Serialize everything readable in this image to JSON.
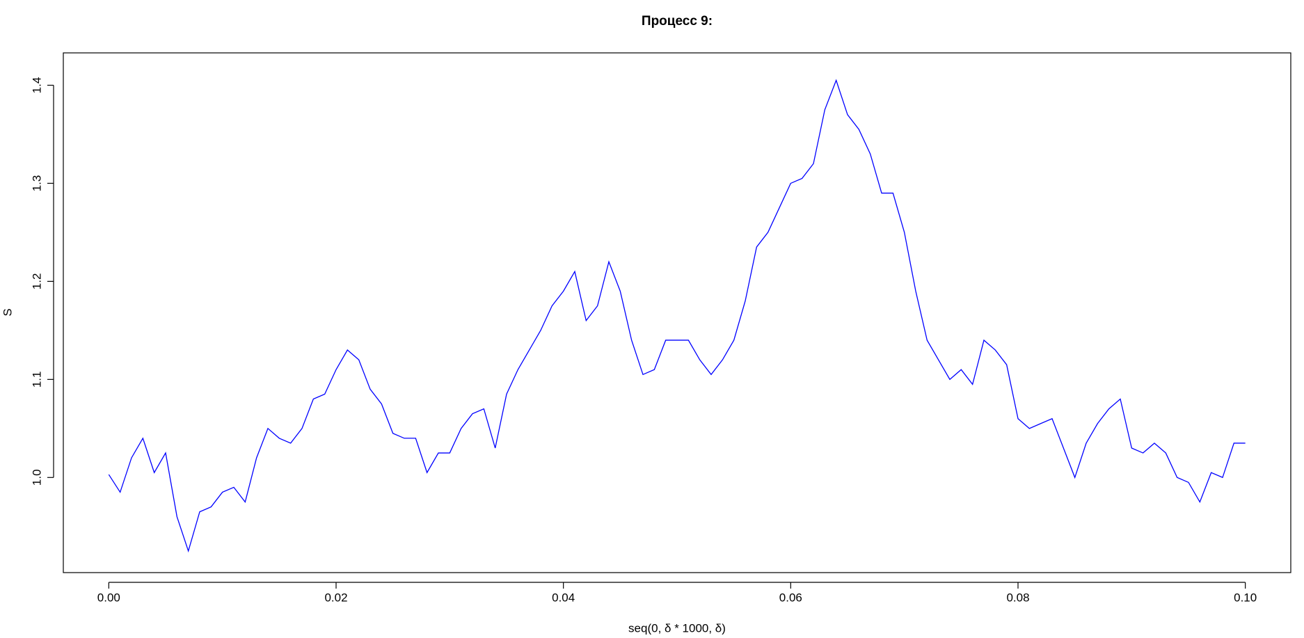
{
  "chart_data": {
    "type": "line",
    "title": "Процесс 9:",
    "xlabel": "seq(0, δ * 1000, δ)",
    "ylabel": "S",
    "x": [
      0,
      0.001,
      0.002,
      0.003,
      0.004,
      0.005,
      0.006,
      0.007,
      0.008,
      0.009,
      0.01,
      0.011,
      0.012,
      0.013,
      0.014,
      0.015,
      0.016,
      0.017,
      0.018,
      0.019,
      0.02,
      0.021,
      0.022,
      0.023,
      0.024,
      0.025,
      0.026,
      0.027,
      0.028,
      0.029,
      0.03,
      0.031,
      0.032,
      0.033,
      0.034,
      0.035,
      0.036,
      0.037,
      0.038,
      0.039,
      0.04,
      0.041,
      0.042,
      0.043,
      0.044,
      0.045,
      0.046,
      0.047,
      0.048,
      0.049,
      0.05,
      0.051,
      0.052,
      0.053,
      0.054,
      0.055,
      0.056,
      0.057,
      0.058,
      0.059,
      0.06,
      0.061,
      0.062,
      0.063,
      0.064,
      0.065,
      0.066,
      0.067,
      0.068,
      0.069,
      0.07,
      0.071,
      0.072,
      0.073,
      0.074,
      0.075,
      0.076,
      0.077,
      0.078,
      0.079,
      0.08,
      0.081,
      0.082,
      0.083,
      0.084,
      0.085,
      0.086,
      0.087,
      0.088,
      0.089,
      0.09,
      0.091,
      0.092,
      0.093,
      0.094,
      0.095,
      0.096,
      0.097,
      0.098,
      0.099,
      0.1
    ],
    "series": [
      {
        "color": "#0000ff",
        "values": [
          1.003,
          0.985,
          1.02,
          1.04,
          1.005,
          1.025,
          0.96,
          0.925,
          0.965,
          0.97,
          0.985,
          0.99,
          0.975,
          1.02,
          1.05,
          1.04,
          1.035,
          1.05,
          1.08,
          1.085,
          1.11,
          1.13,
          1.12,
          1.09,
          1.075,
          1.045,
          1.04,
          1.04,
          1.005,
          1.025,
          1.025,
          1.05,
          1.065,
          1.07,
          1.03,
          1.085,
          1.11,
          1.13,
          1.15,
          1.175,
          1.19,
          1.21,
          1.16,
          1.175,
          1.22,
          1.19,
          1.14,
          1.105,
          1.11,
          1.14,
          1.14,
          1.14,
          1.12,
          1.105,
          1.12,
          1.14,
          1.18,
          1.235,
          1.25,
          1.275,
          1.3,
          1.305,
          1.32,
          1.375,
          1.405,
          1.37,
          1.355,
          1.33,
          1.29,
          1.29,
          1.25,
          1.19,
          1.14,
          1.12,
          1.1,
          1.11,
          1.095,
          1.14,
          1.13,
          1.115,
          1.06,
          1.05,
          1.055,
          1.06,
          1.03,
          1.0,
          1.035,
          1.055,
          1.07,
          1.08,
          1.03,
          1.025,
          1.035,
          1.025,
          1.0,
          0.995,
          0.975,
          1.005,
          1.0,
          1.035,
          1.035
        ]
      }
    ],
    "xlim": [
      -0.004,
      0.104
    ],
    "ylim": [
      0.903,
      1.433
    ],
    "xticks": [
      {
        "value": 0,
        "label": "0.00"
      },
      0.02,
      0.04,
      0.06,
      0.08,
      {
        "value": 0.1,
        "label": "0.10"
      }
    ],
    "yticks": [
      {
        "value": 1,
        "label": "1.0"
      },
      1.1,
      1.2,
      1.3,
      1.4
    ]
  }
}
